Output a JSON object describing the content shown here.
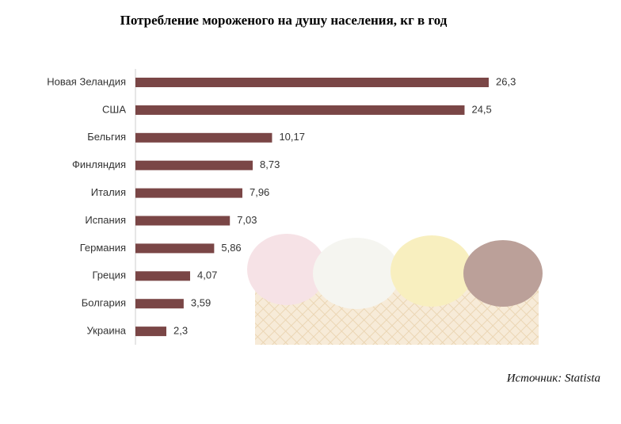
{
  "chart_data": {
    "type": "bar",
    "orientation": "horizontal",
    "title": "Потребление мороженого на душу населения, кг в год",
    "source": "Источник: Statista",
    "categories": [
      "Новая Зеландия",
      "США",
      "Бельгия",
      "Финляндия",
      "Италия",
      "Испания",
      "Германия",
      "Греция",
      "Болгария",
      "Украина"
    ],
    "values": [
      26.3,
      24.5,
      10.17,
      8.73,
      7.96,
      7.03,
      5.86,
      4.07,
      3.59,
      2.3
    ],
    "value_labels": [
      "26,3",
      "24,5",
      "10,17",
      "8,73",
      "7,96",
      "7,03",
      "5,86",
      "4,07",
      "3,59",
      "2,3"
    ],
    "color": "#7a4646"
  }
}
